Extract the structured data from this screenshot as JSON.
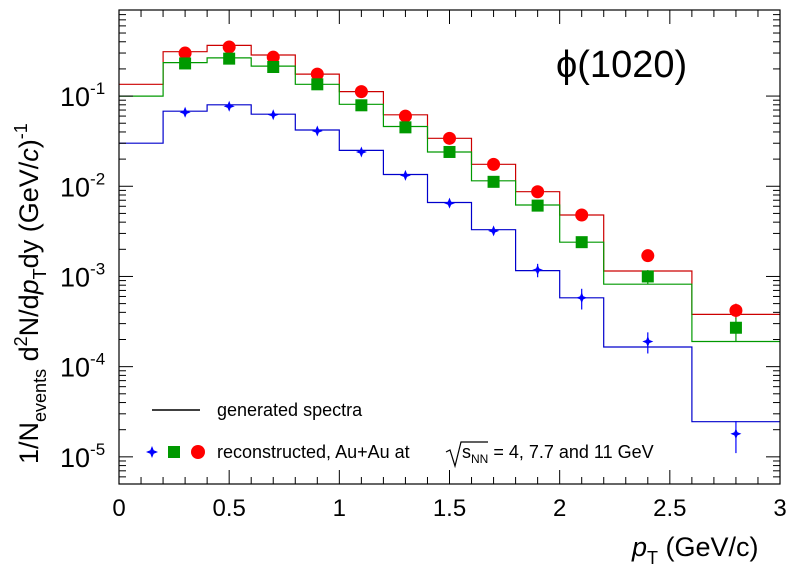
{
  "chart_data": {
    "type": "scatter",
    "title": "",
    "particle": "ϕ(1020)",
    "xlabel": {
      "main": "p",
      "sub": "T",
      "unit": " (GeV/c)"
    },
    "ylabel": {
      "p1": "1/N",
      "p1sub": "events",
      "p2": " d",
      "p2sup": "2",
      "p3": "N/d",
      "p4": "p",
      "p4sub": "T",
      "p5": "dy (GeV/",
      "p6": "c",
      "p7": ")",
      "p7sup": "-1"
    },
    "xlim": [
      0,
      3
    ],
    "ylim": [
      5e-06,
      0.9
    ],
    "yscale": "log",
    "x_ticks": [
      "0",
      "0.5",
      "1",
      "1.5",
      "2",
      "2.5",
      "3"
    ],
    "y_ticks": [
      {
        "value": 0.1,
        "base": "10",
        "exp": "-1"
      },
      {
        "value": 0.01,
        "base": "10",
        "exp": "-2"
      },
      {
        "value": 0.001,
        "base": "10",
        "exp": "-3"
      },
      {
        "value": 0.0001,
        "base": "10",
        "exp": "-4"
      },
      {
        "value": 1e-05,
        "base": "10",
        "exp": "-5"
      }
    ],
    "bin_edges": [
      0,
      0.2,
      0.4,
      0.6,
      0.8,
      1.0,
      1.2,
      1.4,
      1.6,
      1.8,
      2.0,
      2.2,
      2.6,
      3.0
    ],
    "generated": [
      {
        "name": "generated 11 GeV",
        "color": "#cc0000",
        "values": [
          0.135,
          0.31,
          0.365,
          0.285,
          0.175,
          0.112,
          0.062,
          0.034,
          0.0175,
          0.0087,
          0.0048,
          0.00115,
          0.00038
        ]
      },
      {
        "name": "generated 7.7 GeV",
        "color": "#009900",
        "values": [
          0.1,
          0.235,
          0.265,
          0.215,
          0.135,
          0.081,
          0.046,
          0.024,
          0.0115,
          0.0062,
          0.0024,
          0.00082,
          0.00019
        ]
      },
      {
        "name": "generated 4 GeV",
        "color": "#0000cc",
        "values": [
          0.03,
          0.068,
          0.08,
          0.063,
          0.042,
          0.025,
          0.0135,
          0.0066,
          0.0033,
          0.00116,
          0.00058,
          0.000165,
          2.45e-05
        ]
      }
    ],
    "series": [
      {
        "name": "reconstructed 11 GeV",
        "marker": "circle",
        "color": "#ff0000",
        "x": [
          0.3,
          0.5,
          0.7,
          0.9,
          1.1,
          1.3,
          1.5,
          1.7,
          1.9,
          2.1,
          2.4,
          2.8
        ],
        "y": [
          0.3,
          0.35,
          0.27,
          0.175,
          0.112,
          0.06,
          0.034,
          0.0175,
          0.0087,
          0.0048,
          0.0017,
          0.00042
        ],
        "err": [
          0,
          0,
          0,
          0,
          0,
          0,
          0,
          0,
          0,
          0,
          0.0002,
          8e-05
        ]
      },
      {
        "name": "reconstructed 7.7 GeV",
        "marker": "square",
        "color": "#009900",
        "x": [
          0.3,
          0.5,
          0.7,
          0.9,
          1.1,
          1.3,
          1.5,
          1.7,
          1.9,
          2.1,
          2.4,
          2.8
        ],
        "y": [
          0.23,
          0.26,
          0.21,
          0.135,
          0.079,
          0.045,
          0.024,
          0.0112,
          0.0061,
          0.0024,
          0.001,
          0.00027
        ],
        "err": [
          0,
          0,
          0,
          0,
          0,
          0,
          0,
          0,
          0.0004,
          0.0003,
          0.00018,
          8e-05
        ]
      },
      {
        "name": "reconstructed 4 GeV",
        "marker": "star",
        "color": "#0000ff",
        "x": [
          0.3,
          0.5,
          0.7,
          0.9,
          1.1,
          1.3,
          1.5,
          1.7,
          1.9,
          2.1,
          2.4,
          2.8
        ],
        "y": [
          0.066,
          0.077,
          0.062,
          0.041,
          0.024,
          0.0132,
          0.0065,
          0.0032,
          0.00118,
          0.00058,
          0.00019,
          1.8e-05
        ],
        "err": [
          0.006,
          0,
          0,
          0,
          0,
          0,
          0,
          0.0003,
          0.0002,
          0.00015,
          5e-05,
          7e-06
        ]
      }
    ],
    "legend": {
      "placement": "bottom-left",
      "generated_label": "generated spectra",
      "reco_label_1": "reconstructed, Au+Au at ",
      "sqrt_s": "s",
      "sqrt_sub": "NN",
      "reco_label_2": " = 4, 7.7 and 11 GeV"
    }
  }
}
